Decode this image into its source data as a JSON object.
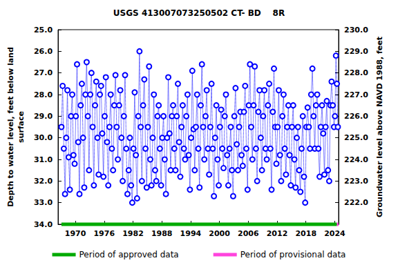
{
  "chart_data": {
    "type": "scatter",
    "title": "USGS 413007073250502 CT- BD    8R",
    "x_label": "",
    "y_label": "Depth to water level, feet below land\nsurface",
    "y2_label": "Groundwater level above NAVD 1988, feet",
    "xlim": [
      1966.4,
      2024.8
    ],
    "xticks": [
      1970,
      1976,
      1982,
      1988,
      1994,
      2000,
      2006,
      2012,
      2018,
      2024
    ],
    "ylim": [
      25,
      34
    ],
    "yticks": [
      {
        "value": 25,
        "label": "25.0"
      },
      {
        "value": 26,
        "label": "26.0"
      },
      {
        "value": 27,
        "label": "27.0"
      },
      {
        "value": 28,
        "label": "28.0"
      },
      {
        "value": 29,
        "label": "29.0"
      },
      {
        "value": 30,
        "label": "30.0"
      },
      {
        "value": 31,
        "label": "31.0"
      },
      {
        "value": 32,
        "label": "32.0"
      },
      {
        "value": 33,
        "label": "33.0"
      },
      {
        "value": 34,
        "label": "34.0"
      }
    ],
    "y_inverted": true,
    "y2lim": [
      221,
      230
    ],
    "y2ticks": [
      {
        "value": 222,
        "label": "222.0"
      },
      {
        "value": 223,
        "label": "223.0"
      },
      {
        "value": 224,
        "label": "224.0"
      },
      {
        "value": 225,
        "label": "225.0"
      },
      {
        "value": 226,
        "label": "226.0"
      },
      {
        "value": 227,
        "label": "227.0"
      },
      {
        "value": 228,
        "label": "228.0"
      },
      {
        "value": 229,
        "label": "229.0"
      },
      {
        "value": 230,
        "label": "230.0"
      }
    ],
    "grid": false,
    "legend": "bottom",
    "series": [
      {
        "color": "#0000ff",
        "marker": "circle_open",
        "line_style": "dotted",
        "x": [
          1967.1,
          1967.35,
          1967.6,
          1967.85,
          1968.1,
          1968.35,
          1968.6,
          1968.85,
          1969.1,
          1969.35,
          1969.6,
          1969.85,
          1970.1,
          1970.35,
          1970.6,
          1970.85,
          1971.1,
          1971.35,
          1971.6,
          1971.85,
          1972.1,
          1972.35,
          1972.6,
          1972.85,
          1973.1,
          1973.35,
          1973.6,
          1973.85,
          1974.1,
          1974.35,
          1974.6,
          1974.85,
          1975.1,
          1975.35,
          1975.6,
          1975.85,
          1976.1,
          1976.35,
          1976.6,
          1976.85,
          1977.1,
          1977.35,
          1977.6,
          1977.85,
          1978.1,
          1978.35,
          1978.6,
          1978.85,
          1979.1,
          1979.35,
          1979.6,
          1979.85,
          1980.1,
          1980.35,
          1980.6,
          1980.85,
          1981.1,
          1981.35,
          1981.6,
          1981.85,
          1982.1,
          1982.35,
          1982.6,
          1982.85,
          1983.1,
          1983.35,
          1983.6,
          1983.85,
          1984.1,
          1984.35,
          1984.6,
          1984.85,
          1985.1,
          1985.35,
          1985.6,
          1985.85,
          1986.1,
          1986.35,
          1986.6,
          1986.85,
          1987.1,
          1987.35,
          1987.6,
          1987.85,
          1988.1,
          1988.35,
          1988.6,
          1988.85,
          1989.1,
          1989.35,
          1989.6,
          1989.85,
          1990.1,
          1990.35,
          1990.6,
          1990.85,
          1991.1,
          1991.35,
          1991.6,
          1991.85,
          1992.1,
          1992.35,
          1992.6,
          1992.85,
          1993.1,
          1993.35,
          1993.6,
          1993.85,
          1994.1,
          1994.35,
          1994.6,
          1994.85,
          1995.1,
          1995.35,
          1995.6,
          1995.85,
          1996.1,
          1996.35,
          1996.6,
          1996.85,
          1997.1,
          1997.35,
          1997.6,
          1997.85,
          1998.1,
          1998.35,
          1998.6,
          1998.85,
          1999.1,
          1999.35,
          1999.6,
          1999.85,
          2000.1,
          2000.35,
          2000.6,
          2000.85,
          2001.1,
          2001.35,
          2001.6,
          2001.85,
          2002.1,
          2002.35,
          2002.6,
          2002.85,
          2003.1,
          2003.35,
          2003.6,
          2003.85,
          2004.1,
          2004.35,
          2004.6,
          2004.85,
          2005.1,
          2005.35,
          2005.6,
          2005.85,
          2006.1,
          2006.35,
          2006.6,
          2006.85,
          2007.1,
          2007.35,
          2007.6,
          2007.85,
          2008.1,
          2008.35,
          2008.6,
          2008.85,
          2009.1,
          2009.35,
          2009.6,
          2009.85,
          2010.1,
          2010.35,
          2010.6,
          2010.85,
          2011.1,
          2011.35,
          2011.6,
          2011.85,
          2012.1,
          2012.35,
          2012.6,
          2012.85,
          2013.1,
          2013.35,
          2013.6,
          2013.85,
          2014.1,
          2014.35,
          2014.6,
          2014.85,
          2015.1,
          2015.35,
          2015.6,
          2015.85,
          2016.1,
          2016.35,
          2016.6,
          2016.85,
          2017.1,
          2017.35,
          2017.6,
          2017.85,
          2018.1,
          2018.35,
          2018.6,
          2018.85,
          2019.1,
          2019.35,
          2019.6,
          2019.85,
          2020.1,
          2020.35,
          2020.6,
          2020.85,
          2021.1,
          2021.35,
          2021.6,
          2021.85,
          2022.1,
          2022.35,
          2022.6,
          2022.85,
          2023.1,
          2023.35,
          2023.6,
          2023.85,
          2024.05,
          2024.25,
          2024.45,
          2024.65
        ],
        "values": [
          29.5,
          27.6,
          30.5,
          32.6,
          30.0,
          27.8,
          30.9,
          32.4,
          29.0,
          28.0,
          30.8,
          31.2,
          29.0,
          26.6,
          30.2,
          32.6,
          28.5,
          27.5,
          30.0,
          32.3,
          28.0,
          26.5,
          29.0,
          31.5,
          28.0,
          27.0,
          29.5,
          32.2,
          28.5,
          27.4,
          30.0,
          31.7,
          28.0,
          27.6,
          29.8,
          31.8,
          29.0,
          27.2,
          30.2,
          32.2,
          29.5,
          28.0,
          30.5,
          31.5,
          28.5,
          27.1,
          29.5,
          31.0,
          28.5,
          27.8,
          30.0,
          32.0,
          29.0,
          27.1,
          30.5,
          32.6,
          31.5,
          30.0,
          32.2,
          33.0,
          30.5,
          27.9,
          30.8,
          32.8,
          29.0,
          26.0,
          29.5,
          32.0,
          28.5,
          27.3,
          30.5,
          32.3,
          29.5,
          26.7,
          31.0,
          32.2,
          30.0,
          28.0,
          31.5,
          32.0,
          29.0,
          28.5,
          30.5,
          32.2,
          30.0,
          29.0,
          31.0,
          32.6,
          30.0,
          27.2,
          29.8,
          31.5,
          29.0,
          28.5,
          30.5,
          31.5,
          29.0,
          27.5,
          30.2,
          31.8,
          29.5,
          28.5,
          30.5,
          31.0,
          29.0,
          28.0,
          30.8,
          32.4,
          30.0,
          26.9,
          29.6,
          31.5,
          29.5,
          28.0,
          30.5,
          32.3,
          28.5,
          26.6,
          29.5,
          31.0,
          29.0,
          27.8,
          30.5,
          31.7,
          29.5,
          27.5,
          30.5,
          32.7,
          30.0,
          28.5,
          31.0,
          32.2,
          29.5,
          28.7,
          30.5,
          31.4,
          29.0,
          28.0,
          30.8,
          32.2,
          30.5,
          29.5,
          31.5,
          32.7,
          29.0,
          27.7,
          30.3,
          31.5,
          29.5,
          28.8,
          30.8,
          31.3,
          28.8,
          27.6,
          30.5,
          32.4,
          28.5,
          26.6,
          29.5,
          31.0,
          28.5,
          26.7,
          30.5,
          32.0,
          28.8,
          27.8,
          30.0,
          31.5,
          29.0,
          27.8,
          30.5,
          31.0,
          28.5,
          27.5,
          30.5,
          32.4,
          28.8,
          26.8,
          29.5,
          31.2,
          29.5,
          27.8,
          30.8,
          32.0,
          29.0,
          28.0,
          30.5,
          31.7,
          29.5,
          28.5,
          30.8,
          32.2,
          29.5,
          28.5,
          31.0,
          32.3,
          30.0,
          29.5,
          31.5,
          32.5,
          30.5,
          29.0,
          31.8,
          33.0,
          29.5,
          28.6,
          29.5,
          30.5,
          28.0,
          26.8,
          29.0,
          30.5,
          28.5,
          28.0,
          30.5,
          31.8,
          29.5,
          28.5,
          29.8,
          31.7,
          29.5,
          28.3,
          31.5,
          32.0,
          28.5,
          27.4,
          28.5,
          29.5,
          29.0,
          26.2,
          27.5,
          29.5
        ]
      }
    ],
    "periods": [
      {
        "name": "Period of approved data",
        "color": "#00aa00",
        "x": [
          1967.1,
          2024.45
        ]
      },
      {
        "name": "Period of provisional data",
        "color": "#ff44dd",
        "x": [
          2024.45,
          2024.8
        ]
      }
    ]
  }
}
